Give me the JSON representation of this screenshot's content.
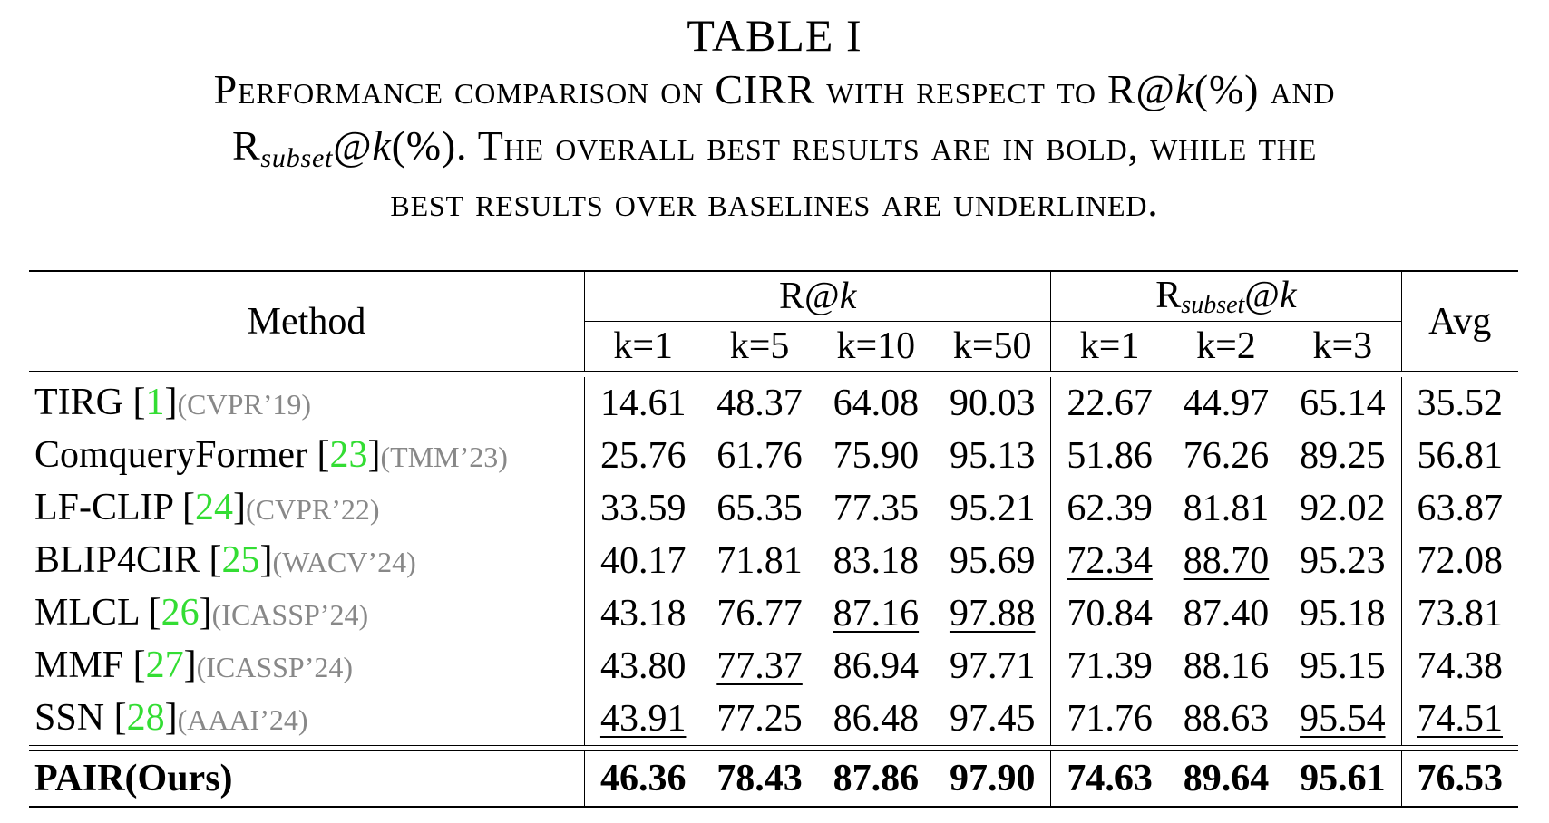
{
  "caption": {
    "label": "TABLE I",
    "line1_a": "Performance comparison on CIRR with respect to R@",
    "line1_k": "k",
    "line1_b": "(%) and",
    "line2_r": "R",
    "line2_sub": "subset",
    "line2_at": "@",
    "line2_k": "k",
    "line2_b": "(%). The overall best results are in bold, while the",
    "line3": "best results over baselines are underlined."
  },
  "header": {
    "method": "Method",
    "group1_r": "R@",
    "group1_k": "k",
    "group2_r": "R",
    "group2_sub": "subset",
    "group2_at": "@",
    "group2_k": "k",
    "avg": "Avg",
    "k_cols": [
      "k=1",
      "k=5",
      "k=10",
      "k=50",
      "k=1",
      "k=2",
      "k=3"
    ]
  },
  "rows": [
    {
      "name": "TIRG ",
      "cite": "1",
      "venue": "(CVPR’19)",
      "values": [
        "14.61",
        "48.37",
        "64.08",
        "90.03",
        "22.67",
        "44.97",
        "65.14",
        "35.52"
      ]
    },
    {
      "name": "ComqueryFormer ",
      "cite": "23",
      "venue": "(TMM’23)",
      "values": [
        "25.76",
        "61.76",
        "75.90",
        "95.13",
        "51.86",
        "76.26",
        "89.25",
        "56.81"
      ]
    },
    {
      "name": "LF-CLIP ",
      "cite": "24",
      "venue": "(CVPR’22)",
      "values": [
        "33.59",
        "65.35",
        "77.35",
        "95.21",
        "62.39",
        "81.81",
        "92.02",
        "63.87"
      ]
    },
    {
      "name": "BLIP4CIR ",
      "cite": "25",
      "venue": "(WACV’24)",
      "values": [
        "40.17",
        "71.81",
        "83.18",
        "95.69",
        "72.34",
        "88.70",
        "95.23",
        "72.08"
      ]
    },
    {
      "name": "MLCL ",
      "cite": "26",
      "venue": "(ICASSP’24)",
      "values": [
        "43.18",
        "76.77",
        "87.16",
        "97.88",
        "70.84",
        "87.40",
        "95.18",
        "73.81"
      ]
    },
    {
      "name": "MMF ",
      "cite": "27",
      "venue": "(ICASSP’24)",
      "values": [
        "43.80",
        "77.37",
        "86.94",
        "97.71",
        "71.39",
        "88.16",
        "95.15",
        "74.38"
      ]
    },
    {
      "name": "SSN ",
      "cite": "28",
      "venue": "(AAAI’24)",
      "values": [
        "43.91",
        "77.25",
        "86.48",
        "97.45",
        "71.76",
        "88.63",
        "95.54",
        "74.51"
      ]
    }
  ],
  "final": {
    "name": "PAIR(Ours)",
    "values": [
      "46.36",
      "78.43",
      "87.86",
      "97.90",
      "74.63",
      "89.64",
      "95.61",
      "76.53"
    ]
  },
  "cite_color": "#33dd33",
  "venue_color": "#888888"
}
